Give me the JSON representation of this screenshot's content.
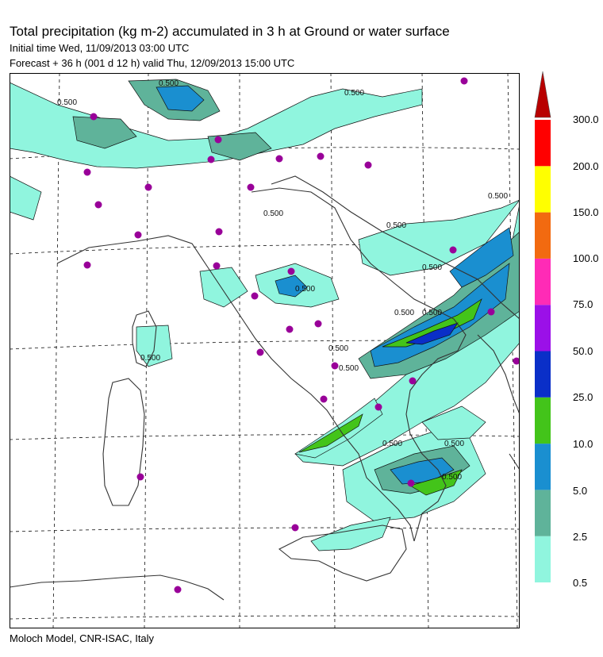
{
  "header": {
    "title": "Total precipitation (kg m-2) accumulated in   3 h at Ground or water surface",
    "initial_time": "Initial time  Wed, 11/09/2013  03:00 UTC",
    "forecast": "Forecast  +  36 h   (001 d 12 h)   valid Thu, 12/09/2013 15:00 UTC"
  },
  "footer": {
    "credit": "Moloch Model, CNR-ISAC, Italy"
  },
  "legend": {
    "levels": [
      "0.5",
      "2.5",
      "5.0",
      "10.0",
      "25.0",
      "50.0",
      "75.0",
      "100.0",
      "150.0",
      "200.0",
      "300.0"
    ],
    "colors": [
      "#90f5de",
      "#5fb39a",
      "#1a8fd0",
      "#43c41a",
      "#0a2fc8",
      "#9b10e8",
      "#ff2bb6",
      "#f26a10",
      "#ffff00",
      "#ff0000",
      "#b80000"
    ]
  },
  "map": {
    "contour_labels": [
      "0.500",
      "0.500",
      "0.500",
      "0.500",
      "0.500",
      "0.500",
      "0.500",
      "0.500",
      "0.500",
      "0.500",
      "0.500",
      "0.500",
      "0.500",
      "0.500",
      "0.500",
      "0.500"
    ],
    "city_marker_color": "#990099"
  }
}
